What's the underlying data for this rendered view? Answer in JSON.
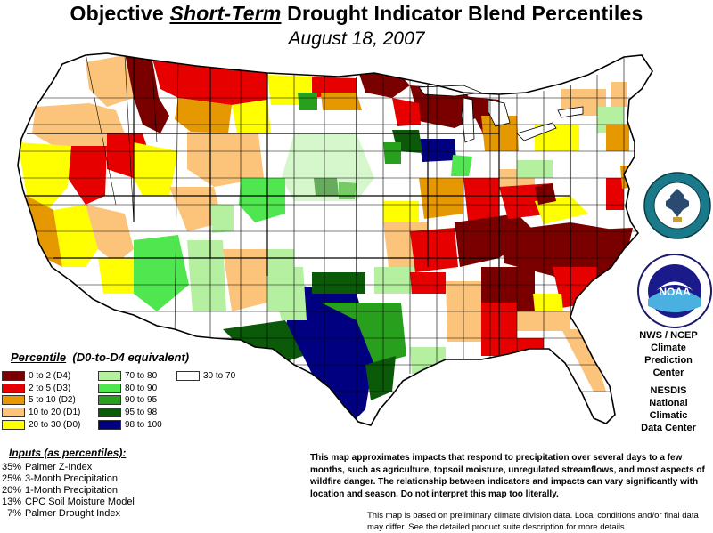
{
  "title": {
    "prefix": "Objective ",
    "emphasis": "Short-Term",
    "suffix": " Drought Indicator Blend Percentiles"
  },
  "subtitle": "August 18, 2007",
  "legend": {
    "title_prefix": "Percentile",
    "title_suffix": "(D0-to-D4 equivalent)",
    "entries": [
      {
        "label": "0 to 2  (D4)",
        "color": "#7a0000"
      },
      {
        "label": "2 to 5  (D3)",
        "color": "#e60000"
      },
      {
        "label": "5 to 10  (D2)",
        "color": "#e69800"
      },
      {
        "label": "10 to 20  (D1)",
        "color": "#fcc47a"
      },
      {
        "label": "20 to 30  (D0)",
        "color": "#ffff00"
      },
      {
        "label": "70 to 80",
        "color": "#b4f0a0"
      },
      {
        "label": "80 to 90",
        "color": "#50e650"
      },
      {
        "label": "90 to 95",
        "color": "#28a01e"
      },
      {
        "label": "95 to 98",
        "color": "#0a5a0a"
      },
      {
        "label": "98 to 100",
        "color": "#000080"
      },
      {
        "label": "30 to 70",
        "color": "#ffffff"
      }
    ]
  },
  "inputs": {
    "title": "Inputs (as percentiles):",
    "items": [
      {
        "pct": "35%",
        "name": "Palmer Z-Index"
      },
      {
        "pct": "25%",
        "name": "3-Month Precipitation"
      },
      {
        "pct": "20%",
        "name": "1-Month Precipitation"
      },
      {
        "pct": "13%",
        "name": "CPC Soil Moisture Model"
      },
      {
        "pct": "7%",
        "name": "Palmer Drought Index"
      }
    ]
  },
  "agencies": {
    "first": [
      "NWS / NCEP",
      "Climate",
      "Prediction",
      "Center"
    ],
    "second": [
      "NESDIS",
      "National",
      "Climatic",
      "Data Center"
    ]
  },
  "notes": {
    "main": "This map approximates impacts that respond to precipitation over several days to a few months, such as agriculture, topsoil moisture, unregulated streamflows, and most aspects of wildfire danger. The relationship between indicators and impacts can vary significantly with location and season. Do not interpret this map too literally.",
    "disclaimer": "This map is based on preliminary climate division data. Local conditions and/or final data may differ. See the detailed product suite description for more details."
  },
  "seals": {
    "commerce_text": "DEPARTMENT OF COMMERCE · UNITED STATES OF AMERICA",
    "noaa_text": "NOAA",
    "noaa_ring_text": "NATIONAL OCEANIC AND ATMOSPHERIC ADMINISTRATION · U.S. DEPARTMENT OF COMMERCE"
  },
  "colors": {
    "D4": "#7a0000",
    "D3": "#e60000",
    "D2": "#e69800",
    "D1": "#fcc47a",
    "D0": "#ffff00",
    "w70": "#b4f0a0",
    "w80": "#50e650",
    "w90": "#28a01e",
    "w95": "#0a5a0a",
    "w98": "#000080",
    "normal": "#ffffff",
    "lake": "#ffffff"
  }
}
